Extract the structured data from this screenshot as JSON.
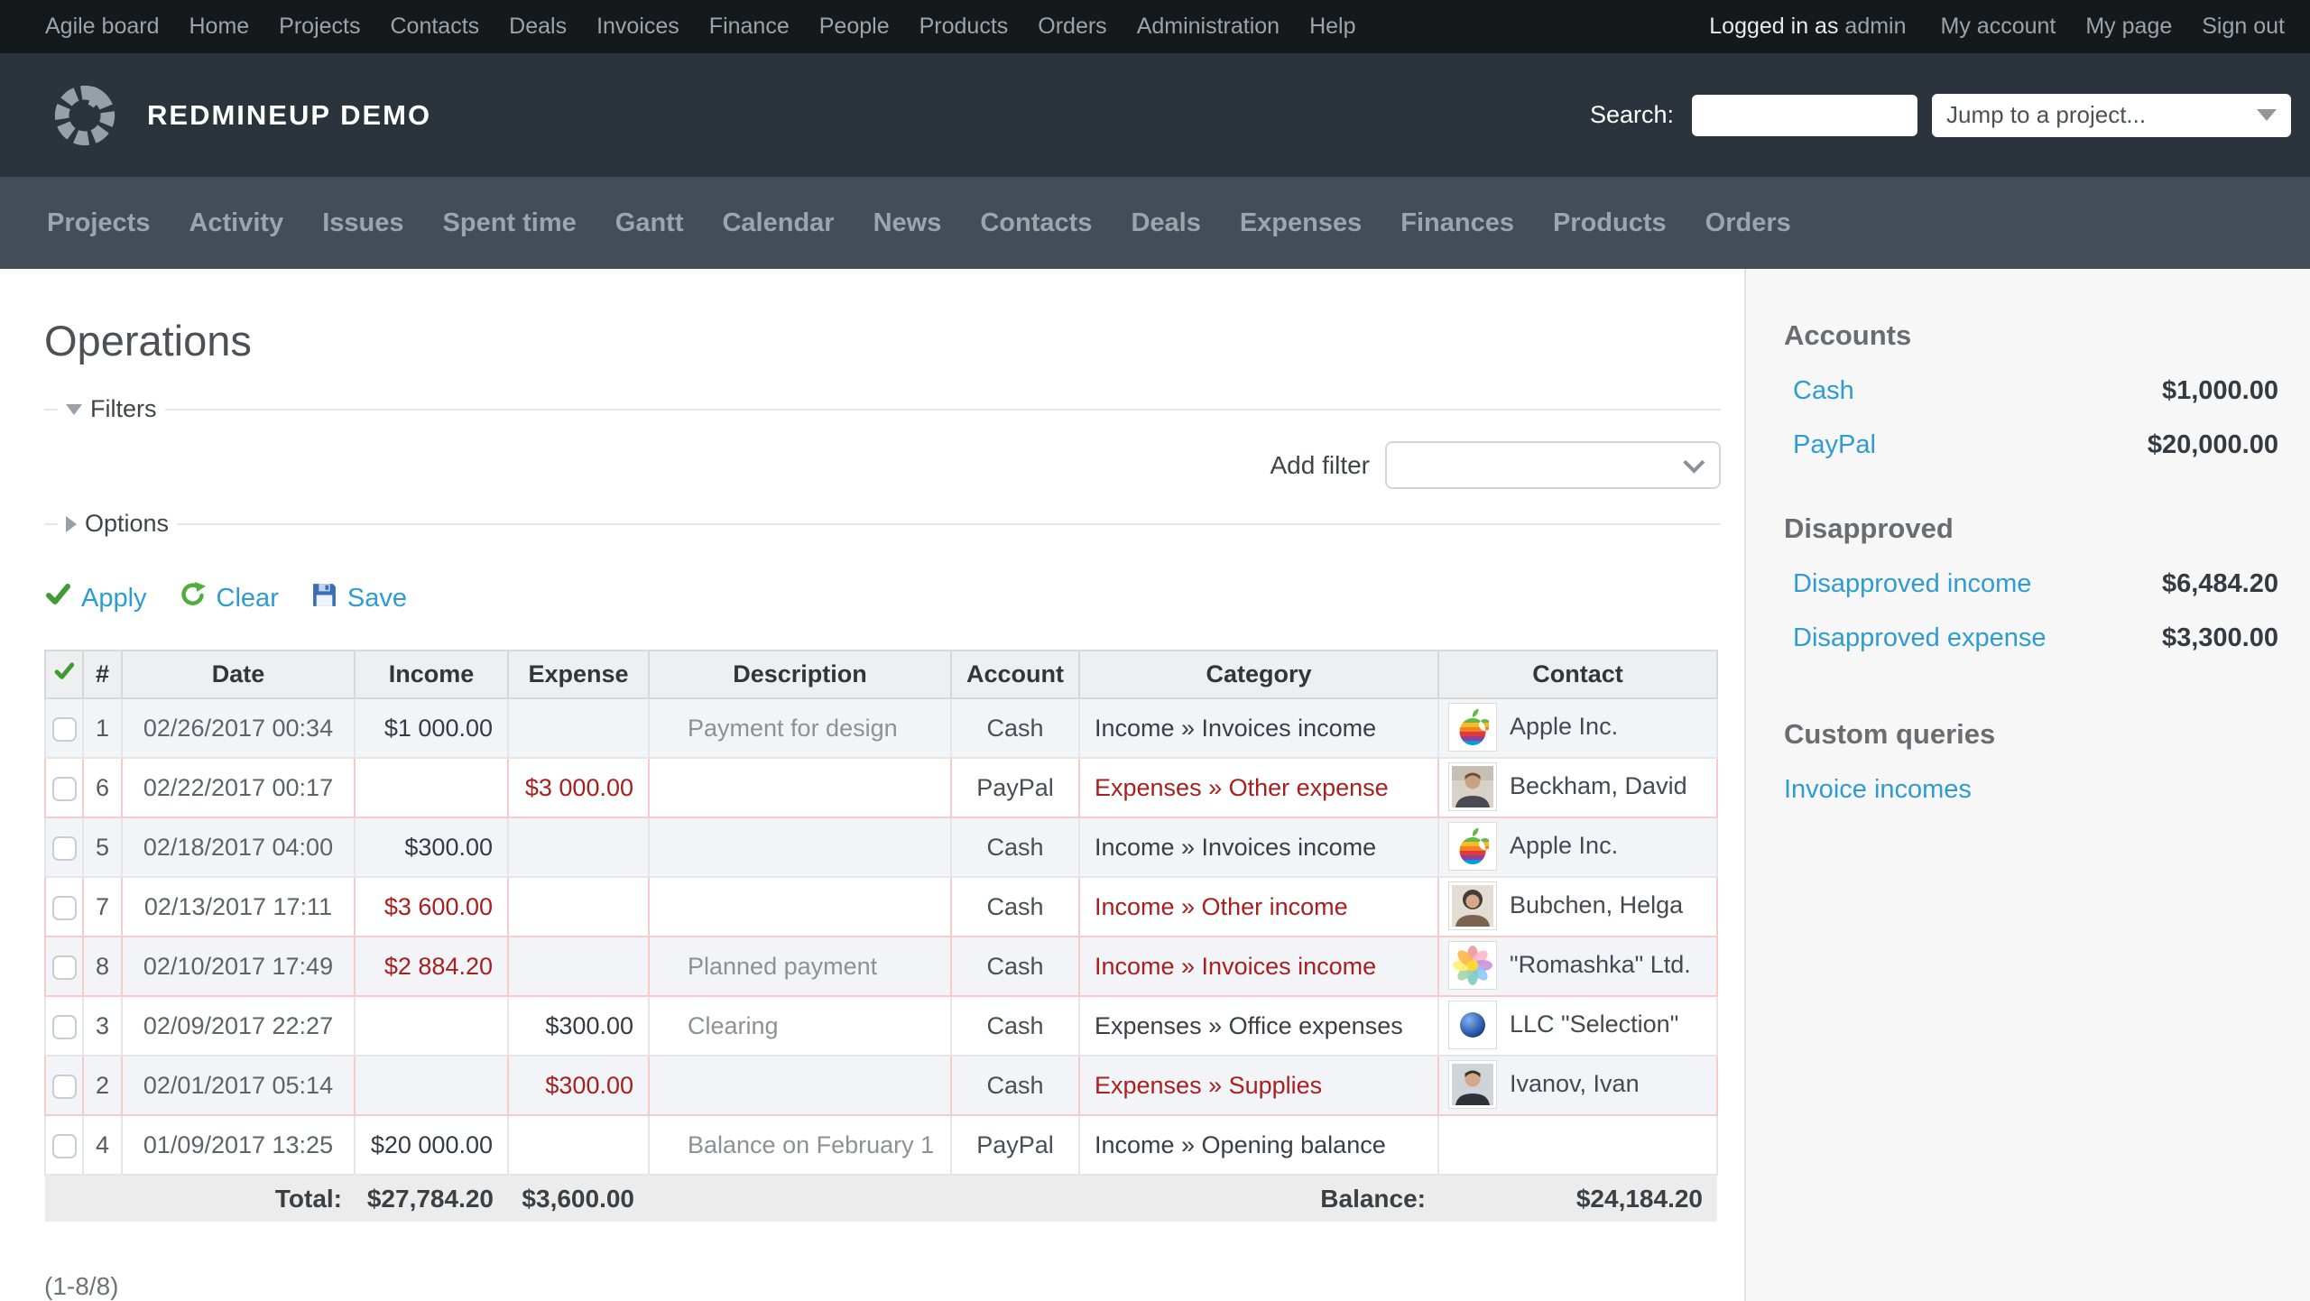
{
  "top_bar": {
    "menu_items": [
      "Agile board",
      "Home",
      "Projects",
      "Contacts",
      "Deals",
      "Invoices",
      "Finance",
      "People",
      "Products",
      "Orders",
      "Administration",
      "Help"
    ],
    "logged_in_prefix": "Logged in as",
    "logged_in_user": "admin",
    "user_links": [
      "My account",
      "My page",
      "Sign out"
    ]
  },
  "header": {
    "app_title": "REDMINEUP DEMO",
    "search_label": "Search:",
    "search_value": "",
    "project_jump_value": "Jump to a project...",
    "logo_icon": "segmented-ring-logo"
  },
  "main_nav": {
    "items": [
      "Projects",
      "Activity",
      "Issues",
      "Spent time",
      "Gantt",
      "Calendar",
      "News",
      "Contacts",
      "Deals",
      "Expenses",
      "Finances",
      "Products",
      "Orders"
    ]
  },
  "page": {
    "title": "Operations",
    "filters_legend": "Filters",
    "options_legend": "Options",
    "add_filter_label": "Add filter",
    "add_filter_value": "",
    "apply_label": "Apply",
    "clear_label": "Clear",
    "save_label": "Save",
    "apply_icon": "green-check-icon",
    "clear_icon": "green-reload-icon",
    "save_icon": "blue-floppy-icon",
    "pagination": "(1-8/8)"
  },
  "table": {
    "headers": [
      "#",
      "Date",
      "Income",
      "Expense",
      "Description",
      "Account",
      "Category",
      "Contact"
    ],
    "header_check_icon": "green-check-icon",
    "rows": [
      {
        "num": "1",
        "date": "02/26/2017 00:34",
        "income": "$1 000.00",
        "expense": "",
        "description": "Payment for design",
        "account": "Cash",
        "category": "Income » Invoices income",
        "contact": "Apple Inc.",
        "avatar": "apple-logo",
        "flagged": false,
        "income_red": false,
        "expense_red": false,
        "category_red": false
      },
      {
        "num": "6",
        "date": "02/22/2017 00:17",
        "income": "",
        "expense": "$3 000.00",
        "description": "",
        "account": "PayPal",
        "category": "Expenses » Other expense",
        "contact": "Beckham, David",
        "avatar": "photo-man",
        "flagged": true,
        "income_red": false,
        "expense_red": true,
        "category_red": true
      },
      {
        "num": "5",
        "date": "02/18/2017 04:00",
        "income": "$300.00",
        "expense": "",
        "description": "",
        "account": "Cash",
        "category": "Income » Invoices income",
        "contact": "Apple Inc.",
        "avatar": "apple-logo",
        "flagged": false,
        "income_red": false,
        "expense_red": false,
        "category_red": false
      },
      {
        "num": "7",
        "date": "02/13/2017 17:11",
        "income": "$3 600.00",
        "expense": "",
        "description": "",
        "account": "Cash",
        "category": "Income » Other income",
        "contact": "Bubchen, Helga",
        "avatar": "photo-woman",
        "flagged": true,
        "income_red": true,
        "expense_red": false,
        "category_red": true
      },
      {
        "num": "8",
        "date": "02/10/2017 17:49",
        "income": "$2 884.20",
        "expense": "",
        "description": "Planned payment",
        "account": "Cash",
        "category": "Income » Invoices income",
        "contact": "\"Romashka\" Ltd.",
        "avatar": "flower-logo",
        "flagged": true,
        "income_red": true,
        "expense_red": false,
        "category_red": true
      },
      {
        "num": "3",
        "date": "02/09/2017 22:27",
        "income": "",
        "expense": "$300.00",
        "description": "Clearing",
        "account": "Cash",
        "category": "Expenses » Office expenses",
        "contact": "LLC \"Selection\"",
        "avatar": "sphere-logo",
        "flagged": false,
        "income_red": false,
        "expense_red": false,
        "category_red": false
      },
      {
        "num": "2",
        "date": "02/01/2017 05:14",
        "income": "",
        "expense": "$300.00",
        "description": "",
        "account": "Cash",
        "category": "Expenses » Supplies",
        "contact": "Ivanov, Ivan",
        "avatar": "photo-man2",
        "flagged": true,
        "income_red": false,
        "expense_red": true,
        "category_red": true
      },
      {
        "num": "4",
        "date": "01/09/2017 13:25",
        "income": "$20 000.00",
        "expense": "",
        "description": "Balance on February 1",
        "account": "PayPal",
        "category": "Income » Opening balance",
        "contact": "",
        "avatar": "",
        "flagged": false,
        "income_red": false,
        "expense_red": false,
        "category_red": false
      }
    ],
    "footer": {
      "total_label": "Total:",
      "income_total": "$27,784.20",
      "expense_total": "$3,600.00",
      "balance_label": "Balance:",
      "balance_value": "$24,184.20"
    }
  },
  "sidebar": {
    "sections": [
      {
        "title": "Accounts",
        "items": [
          {
            "label": "Cash",
            "value": "$1,000.00"
          },
          {
            "label": "PayPal",
            "value": "$20,000.00"
          }
        ]
      },
      {
        "title": "Disapproved",
        "items": [
          {
            "label": "Disapproved income",
            "value": "$6,484.20"
          },
          {
            "label": "Disapproved expense",
            "value": "$3,300.00"
          }
        ]
      },
      {
        "title": "Custom queries",
        "items": [
          {
            "label": "Invoice incomes",
            "value": ""
          }
        ]
      }
    ]
  },
  "colors": {
    "topbar_bg": "#16191c",
    "header_bg": "#2b343c",
    "nav_bg": "#434d57",
    "sidebar_bg": "#f7f7f8",
    "link_blue": "#2e9cd2",
    "alert_red": "#a81f1f",
    "flagged_row_border": "#f8cbcb",
    "odd_row_bg": "#f3f4f8"
  }
}
